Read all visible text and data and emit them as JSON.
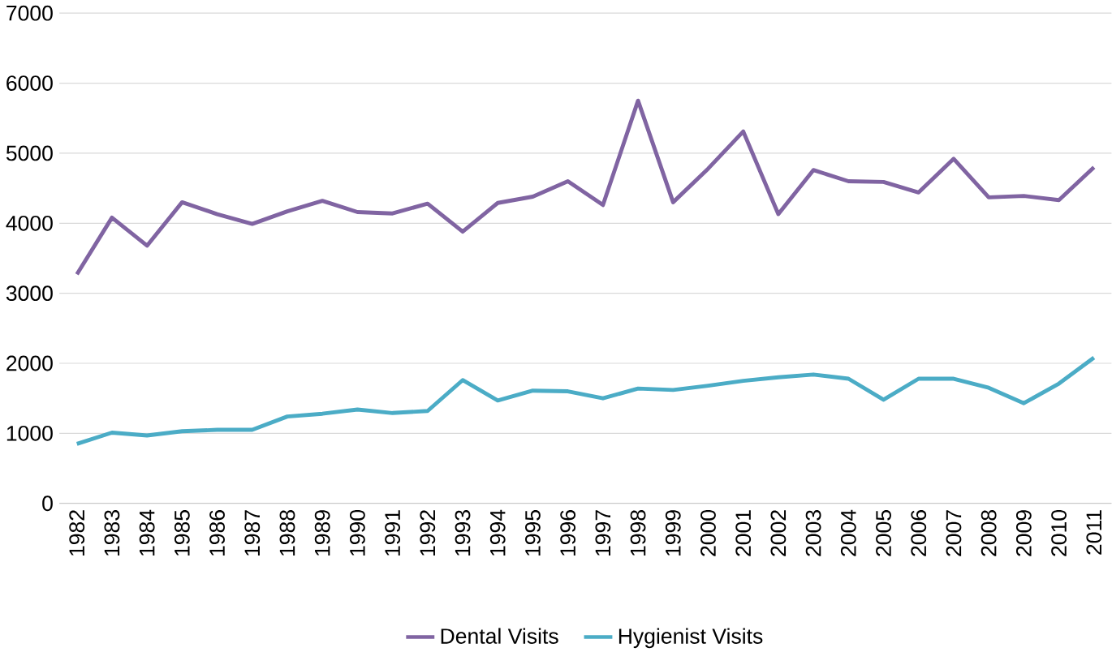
{
  "chart_data": {
    "type": "line",
    "categories": [
      "1982",
      "1983",
      "1984",
      "1985",
      "1986",
      "1987",
      "1988",
      "1989",
      "1990",
      "1991",
      "1992",
      "1993",
      "1994",
      "1995",
      "1996",
      "1997",
      "1998",
      "1999",
      "2000",
      "2001",
      "2002",
      "2003",
      "2004",
      "2005",
      "2006",
      "2007",
      "2008",
      "2009",
      "2010",
      "2011"
    ],
    "series": [
      {
        "name": "Dental Visits",
        "color": "#8064a2",
        "values": [
          3270,
          4080,
          3680,
          4300,
          4130,
          3990,
          4170,
          4320,
          4160,
          4140,
          4280,
          3880,
          4290,
          4380,
          4600,
          4260,
          5750,
          4300,
          4780,
          5310,
          4130,
          4760,
          4600,
          4590,
          4440,
          4920,
          4370,
          4390,
          4330,
          4800
        ]
      },
      {
        "name": "Hygienist Visits",
        "color": "#4bacc6",
        "values": [
          850,
          1010,
          970,
          1030,
          1050,
          1050,
          1240,
          1280,
          1340,
          1290,
          1320,
          1760,
          1470,
          1610,
          1600,
          1500,
          1640,
          1620,
          1680,
          1750,
          1800,
          1840,
          1780,
          1480,
          1780,
          1780,
          1650,
          1430,
          1710,
          2080
        ]
      }
    ],
    "ylim": [
      0,
      7000
    ],
    "yticks": [
      0,
      1000,
      2000,
      3000,
      4000,
      5000,
      6000,
      7000
    ],
    "grid": "y",
    "legend": "bottom",
    "marker": "none",
    "line_style": "solid"
  }
}
